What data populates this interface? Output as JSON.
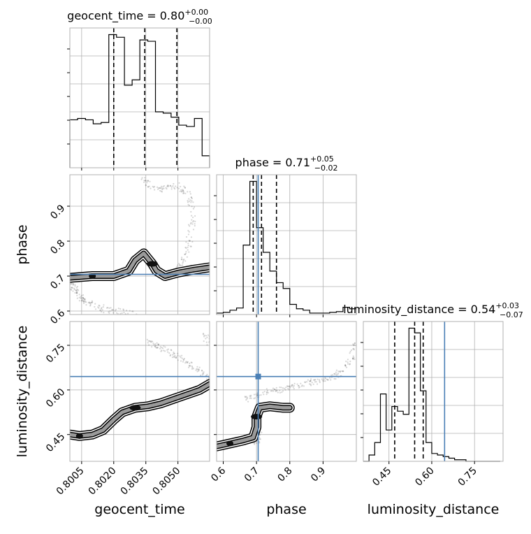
{
  "chart_data": {
    "type": "corner",
    "params": [
      "geocent_time",
      "phase",
      "luminosity_distance"
    ],
    "truth_color": "#4a7fb5",
    "truth": {
      "phase": 0.705,
      "luminosity_distance": 0.645
    },
    "diagonal": [
      {
        "param": "geocent_time",
        "title_text": "geocent_time = 0.80",
        "title_sup": "+0.00",
        "title_sub": "−0.00",
        "range": [
          0.79995,
          0.80648
        ],
        "edges": [
          0.79995,
          0.80031,
          0.80068,
          0.80104,
          0.80141,
          0.80177,
          0.80213,
          0.8025,
          0.80286,
          0.80322,
          0.80359,
          0.80395,
          0.80431,
          0.80468,
          0.80504,
          0.8054,
          0.80577,
          0.80613,
          0.80648
        ],
        "counts": [
          0.36,
          0.37,
          0.36,
          0.33,
          0.34,
          1.0,
          0.98,
          0.62,
          0.66,
          0.96,
          0.95,
          0.42,
          0.41,
          0.38,
          0.32,
          0.31,
          0.37,
          0.09
        ],
        "quantiles": [
          0.802,
          0.80345,
          0.80495
        ],
        "ticks": [
          0.8005,
          0.802,
          0.8035,
          0.805
        ]
      },
      {
        "param": "phase",
        "title_text": "phase = 0.71",
        "title_sup": "+0.05",
        "title_sub": "−0.02",
        "range": [
          0.58,
          1.0
        ],
        "edges": [
          0.58,
          0.6,
          0.62,
          0.64,
          0.66,
          0.68,
          0.7,
          0.72,
          0.74,
          0.76,
          0.78,
          0.8,
          0.82,
          0.84,
          0.86,
          0.88,
          0.9,
          0.92,
          0.94,
          0.96,
          0.98,
          1.0
        ],
        "counts": [
          0.01,
          0.015,
          0.03,
          0.045,
          0.48,
          0.92,
          0.6,
          0.43,
          0.3,
          0.22,
          0.18,
          0.07,
          0.04,
          0.03,
          0.01,
          0.01,
          0.01,
          0.015,
          0.02,
          0.05,
          0.04
        ],
        "quantiles": [
          0.69,
          0.715,
          0.76
        ],
        "ticks": [
          0.6,
          0.7,
          0.8,
          0.9
        ]
      },
      {
        "param": "luminosity_distance",
        "title_text": "luminosity_distance = 0.54",
        "title_sup": "+0.03",
        "title_sub": "−0.07",
        "range": [
          0.36,
          0.85
        ],
        "edges": [
          0.36,
          0.38,
          0.4,
          0.42,
          0.44,
          0.46,
          0.48,
          0.5,
          0.52,
          0.54,
          0.56,
          0.58,
          0.6,
          0.62,
          0.64,
          0.66,
          0.68,
          0.7,
          0.72,
          0.74,
          0.76,
          0.78,
          0.8,
          0.82,
          0.84
        ],
        "counts": [
          0.0,
          0.04,
          0.12,
          0.43,
          0.2,
          0.35,
          0.32,
          0.3,
          0.85,
          0.82,
          0.45,
          0.12,
          0.05,
          0.04,
          0.03,
          0.02,
          0.01,
          0.01,
          0.0,
          0.0,
          0.0,
          0.0,
          0.0,
          0.0
        ],
        "quantiles": [
          0.47,
          0.54,
          0.57
        ],
        "ticks": [
          0.45,
          0.6,
          0.75
        ]
      }
    ],
    "offdiag": [
      {
        "x": "geocent_time",
        "y": "phase",
        "yticks": [
          0.6,
          0.7,
          0.8,
          0.9
        ],
        "yrange": [
          0.59,
          0.99
        ],
        "density_ridge": [
          [
            0.79995,
            0.695
          ],
          [
            0.801,
            0.7
          ],
          [
            0.802,
            0.7
          ],
          [
            0.8027,
            0.715
          ],
          [
            0.803,
            0.745
          ],
          [
            0.8034,
            0.765
          ],
          [
            0.8038,
            0.735
          ],
          [
            0.804,
            0.715
          ],
          [
            0.8044,
            0.7
          ],
          [
            0.805,
            0.71
          ],
          [
            0.8057,
            0.718
          ],
          [
            0.80648,
            0.725
          ]
        ],
        "upper_arm": [
          [
            0.805,
            0.725
          ],
          [
            0.8054,
            0.76
          ],
          [
            0.8056,
            0.82
          ],
          [
            0.8057,
            0.88
          ],
          [
            0.8055,
            0.935
          ],
          [
            0.805,
            0.96
          ],
          [
            0.8044,
            0.95
          ],
          [
            0.8038,
            0.95
          ],
          [
            0.8033,
            0.985
          ]
        ],
        "lower_arm": [
          [
            0.79995,
            0.69
          ],
          [
            0.8001,
            0.67
          ],
          [
            0.8003,
            0.65
          ],
          [
            0.8006,
            0.632
          ],
          [
            0.801,
            0.618
          ],
          [
            0.8016,
            0.605
          ],
          [
            0.8022,
            0.598
          ],
          [
            0.803,
            0.594
          ]
        ]
      },
      {
        "x": "geocent_time",
        "y": "luminosity_distance",
        "yticks": [
          0.45,
          0.6,
          0.75
        ],
        "yrange": [
          0.36,
          0.83
        ],
        "density_ridge": [
          [
            0.79995,
            0.45
          ],
          [
            0.8004,
            0.445
          ],
          [
            0.801,
            0.45
          ],
          [
            0.8015,
            0.465
          ],
          [
            0.802,
            0.5
          ],
          [
            0.8024,
            0.525
          ],
          [
            0.803,
            0.54
          ],
          [
            0.8036,
            0.545
          ],
          [
            0.8042,
            0.555
          ],
          [
            0.8048,
            0.57
          ],
          [
            0.8054,
            0.585
          ],
          [
            0.806,
            0.6
          ],
          [
            0.80648,
            0.62
          ]
        ],
        "upper_arm": [
          [
            0.80648,
            0.64
          ],
          [
            0.806,
            0.66
          ],
          [
            0.8056,
            0.69
          ],
          [
            0.805,
            0.71
          ],
          [
            0.8045,
            0.73
          ],
          [
            0.804,
            0.75
          ],
          [
            0.8036,
            0.76
          ]
        ],
        "lower_arm": [
          [
            0.80648,
            0.76
          ],
          [
            0.8063,
            0.78
          ]
        ]
      },
      {
        "x": "phase",
        "y": "luminosity_distance",
        "yticks": [
          0.45,
          0.6,
          0.75
        ],
        "yrange": [
          0.36,
          0.83
        ],
        "density_ridge": [
          [
            0.58,
            0.41
          ],
          [
            0.62,
            0.42
          ],
          [
            0.66,
            0.43
          ],
          [
            0.69,
            0.44
          ],
          [
            0.7,
            0.475
          ],
          [
            0.7,
            0.51
          ],
          [
            0.71,
            0.54
          ],
          [
            0.74,
            0.545
          ],
          [
            0.78,
            0.54
          ],
          [
            0.8,
            0.54
          ]
        ],
        "upper_arm": [
          [
            0.66,
            0.565
          ],
          [
            0.7,
            0.58
          ],
          [
            0.74,
            0.595
          ],
          [
            0.78,
            0.605
          ],
          [
            0.82,
            0.615
          ],
          [
            0.86,
            0.625
          ],
          [
            0.9,
            0.635
          ],
          [
            0.94,
            0.65
          ],
          [
            0.97,
            0.68
          ],
          [
            0.99,
            0.72
          ],
          [
            1.0,
            0.76
          ]
        ],
        "lower_arm": [
          [
            0.7,
            0.47
          ],
          [
            0.705,
            0.45
          ],
          [
            0.7,
            0.42
          ]
        ]
      }
    ],
    "xlabels": [
      "geocent_time",
      "phase",
      "luminosity_distance"
    ],
    "ylabels": [
      "phase",
      "luminosity_distance"
    ],
    "xtick_labels": {
      "geocent_time": [
        "0.8005",
        "0.8020",
        "0.8035",
        "0.8050"
      ],
      "phase": [
        "0.6",
        "0.7",
        "0.8",
        "0.9"
      ],
      "luminosity_distance": [
        "0.45",
        "0.60",
        "0.75"
      ]
    },
    "ytick_labels": {
      "phase": [
        "0.6",
        "0.7",
        "0.8",
        "0.9"
      ],
      "luminosity_distance": [
        "0.45",
        "0.60",
        "0.75"
      ]
    }
  }
}
